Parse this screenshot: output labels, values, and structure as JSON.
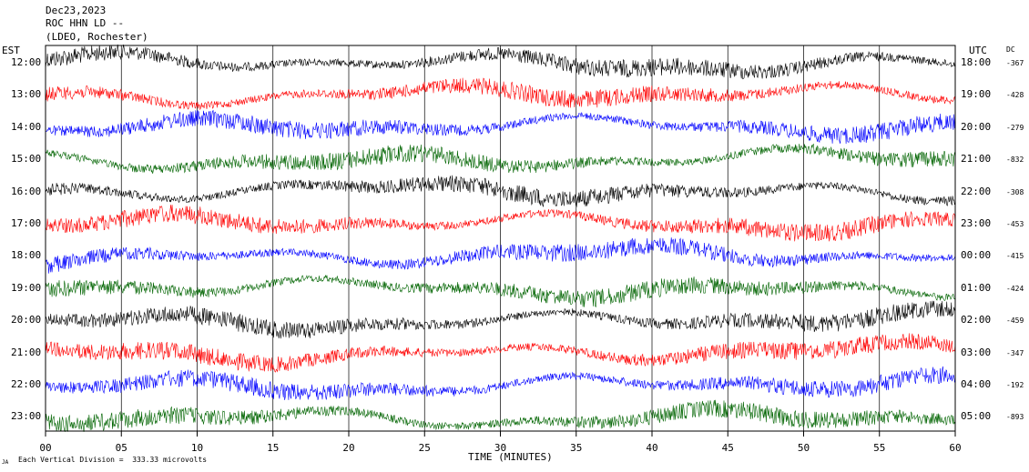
{
  "header": {
    "date": "Dec23,2023",
    "station": "ROC HHN LD --",
    "network": "(LDEO, Rochester)"
  },
  "chart_data": {
    "type": "line",
    "left_axis_title": "EST",
    "right_axis_title": "UTC",
    "dc_title": "DC",
    "xlabel": "TIME (MINUTES)",
    "xlim": [
      0,
      60
    ],
    "x_ticks": [
      "00",
      "05",
      "10",
      "15",
      "20",
      "25",
      "30",
      "35",
      "40",
      "45",
      "50",
      "55",
      "60"
    ],
    "footer_note": "Each Vertical Division =  333.33 microvolts",
    "footer_mark": "JA",
    "rows": [
      {
        "est": "12:00",
        "utc": "18:00",
        "dc": "-367",
        "color": "#000000"
      },
      {
        "est": "13:00",
        "utc": "19:00",
        "dc": "-428",
        "color": "#ff0000"
      },
      {
        "est": "14:00",
        "utc": "20:00",
        "dc": "-279",
        "color": "#0000ff"
      },
      {
        "est": "15:00",
        "utc": "21:00",
        "dc": "-832",
        "color": "#006400"
      },
      {
        "est": "16:00",
        "utc": "22:00",
        "dc": "-308",
        "color": "#000000"
      },
      {
        "est": "17:00",
        "utc": "23:00",
        "dc": "-453",
        "color": "#ff0000"
      },
      {
        "est": "18:00",
        "utc": "00:00",
        "dc": "-415",
        "color": "#0000ff"
      },
      {
        "est": "19:00",
        "utc": "01:00",
        "dc": "-424",
        "color": "#006400"
      },
      {
        "est": "20:00",
        "utc": "02:00",
        "dc": "-459",
        "color": "#000000"
      },
      {
        "est": "21:00",
        "utc": "03:00",
        "dc": "-347",
        "color": "#ff0000"
      },
      {
        "est": "22:00",
        "utc": "04:00",
        "dc": "-192",
        "color": "#0000ff"
      },
      {
        "est": "23:00",
        "utc": "05:00",
        "dc": "-893",
        "color": "#006400"
      }
    ]
  }
}
